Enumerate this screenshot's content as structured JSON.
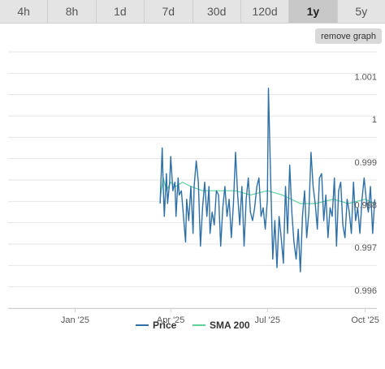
{
  "tabs": [
    {
      "label": "4h",
      "active": false
    },
    {
      "label": "8h",
      "active": false
    },
    {
      "label": "1d",
      "active": false
    },
    {
      "label": "7d",
      "active": false
    },
    {
      "label": "30d",
      "active": false
    },
    {
      "label": "120d",
      "active": false
    },
    {
      "label": "1y",
      "active": true
    },
    {
      "label": "5y",
      "active": false
    }
  ],
  "remove_graph_label": "remove graph",
  "colors": {
    "price": "#2d6fa6",
    "sma": "#5ed19a",
    "grid": "#e6e6e6",
    "axis_text": "#555555"
  },
  "chart_data": {
    "type": "line",
    "title": "",
    "xlabel": "",
    "ylabel": "",
    "x_range": [
      "2024-10-30",
      "2025-10-12"
    ],
    "ylim": [
      0.99575,
      1.00175
    ],
    "y_ticks": [
      0.996,
      0.997,
      0.998,
      0.999,
      1,
      1.001
    ],
    "y_tick_labels": [
      "0.996",
      "0.997",
      "0.998",
      "0.999",
      "1",
      "1.001"
    ],
    "x_ticks": [
      "2025-01-01",
      "2025-04-01",
      "2025-07-01",
      "2025-10-01"
    ],
    "x_tick_labels": [
      "Jan '25",
      "Apr '25",
      "Jul '25",
      "Oct '25"
    ],
    "grid": true,
    "legend": "bottom-center",
    "series": [
      {
        "name": "Price",
        "x": [
          "2025-03-22",
          "2025-03-24",
          "2025-03-25",
          "2025-03-26",
          "2025-03-28",
          "2025-03-29",
          "2025-03-31",
          "2025-04-01",
          "2025-04-03",
          "2025-04-05",
          "2025-04-06",
          "2025-04-08",
          "2025-04-09",
          "2025-04-11",
          "2025-04-13",
          "2025-04-15",
          "2025-04-16",
          "2025-04-18",
          "2025-04-20",
          "2025-04-22",
          "2025-04-23",
          "2025-04-25",
          "2025-04-27",
          "2025-04-29",
          "2025-05-01",
          "2025-05-03",
          "2025-05-05",
          "2025-05-07",
          "2025-05-08",
          "2025-05-10",
          "2025-05-12",
          "2025-05-14",
          "2025-05-16",
          "2025-05-18",
          "2025-05-20",
          "2025-05-22",
          "2025-05-24",
          "2025-05-26",
          "2025-05-28",
          "2025-05-30",
          "2025-06-01",
          "2025-06-03",
          "2025-06-05",
          "2025-06-07",
          "2025-06-09",
          "2025-06-11",
          "2025-06-13",
          "2025-06-15",
          "2025-06-17",
          "2025-06-19",
          "2025-06-21",
          "2025-06-23",
          "2025-06-25",
          "2025-06-27",
          "2025-06-29",
          "2025-07-01",
          "2025-07-02",
          "2025-07-04",
          "2025-07-06",
          "2025-07-08",
          "2025-07-10",
          "2025-07-12",
          "2025-07-14",
          "2025-07-16",
          "2025-07-18",
          "2025-07-20",
          "2025-07-22",
          "2025-07-24",
          "2025-07-26",
          "2025-07-28",
          "2025-07-30",
          "2025-08-01",
          "2025-08-03",
          "2025-08-05",
          "2025-08-07",
          "2025-08-09",
          "2025-08-11",
          "2025-08-13",
          "2025-08-15",
          "2025-08-17",
          "2025-08-19",
          "2025-08-21",
          "2025-08-23",
          "2025-08-25",
          "2025-08-27",
          "2025-08-29",
          "2025-08-31",
          "2025-09-02",
          "2025-09-04",
          "2025-09-06",
          "2025-09-08",
          "2025-09-10",
          "2025-09-12",
          "2025-09-14",
          "2025-09-16",
          "2025-09-18",
          "2025-09-20",
          "2025-09-22",
          "2025-09-24",
          "2025-09-26",
          "2025-09-28",
          "2025-09-30",
          "2025-10-02",
          "2025-10-04",
          "2025-10-06",
          "2025-10-08",
          "2025-10-10"
        ],
        "values": [
          0.9982,
          0.9995,
          0.9986,
          0.9979,
          0.9989,
          0.9982,
          0.9987,
          0.9993,
          0.9985,
          0.9987,
          0.9979,
          0.9988,
          0.9984,
          0.9985,
          0.9979,
          0.9973,
          0.9983,
          0.9978,
          0.9986,
          0.9975,
          0.9986,
          0.9992,
          0.9987,
          0.9972,
          0.9981,
          0.9987,
          0.9979,
          0.9986,
          0.9975,
          0.998,
          0.9977,
          0.9985,
          0.9984,
          0.9972,
          0.9981,
          0.9986,
          0.9979,
          0.9983,
          0.9974,
          0.9982,
          0.9994,
          0.9984,
          0.9977,
          0.9986,
          0.9972,
          0.9983,
          0.9988,
          0.998,
          0.9978,
          0.9981,
          0.9986,
          0.9988,
          0.9979,
          0.9981,
          0.9976,
          0.9983,
          1.0009,
          0.9988,
          0.9969,
          0.9978,
          0.9967,
          0.9979,
          0.9974,
          0.9968,
          0.9986,
          0.9975,
          0.9991,
          0.998,
          0.9973,
          0.9969,
          0.9976,
          0.9966,
          0.9979,
          0.9985,
          0.9974,
          0.998,
          0.9994,
          0.9986,
          0.9982,
          0.9976,
          0.9988,
          0.9989,
          0.9978,
          0.9984,
          0.9974,
          0.9981,
          0.9979,
          0.9988,
          0.9972,
          0.9985,
          0.9987,
          0.9977,
          0.9974,
          0.9983,
          0.998,
          0.9975,
          0.9987,
          0.9978,
          0.9981,
          0.9975,
          0.9983,
          0.9988,
          0.9983,
          0.998,
          0.9986,
          0.9975,
          0.9983
        ]
      },
      {
        "name": "SMA 200",
        "x": [
          "2025-03-22",
          "2025-03-25",
          "2025-03-28",
          "2025-04-01",
          "2025-04-06",
          "2025-04-12",
          "2025-04-20",
          "2025-05-01",
          "2025-05-15",
          "2025-06-01",
          "2025-06-15",
          "2025-07-01",
          "2025-07-15",
          "2025-08-01",
          "2025-08-15",
          "2025-09-01",
          "2025-09-15",
          "2025-10-01",
          "2025-10-10"
        ],
        "values": [
          0.9983,
          0.9988,
          0.9985,
          0.9987,
          0.9986,
          0.9987,
          0.9986,
          0.9985,
          0.9985,
          0.9985,
          0.9984,
          0.9985,
          0.9984,
          0.9982,
          0.9982,
          0.9983,
          0.9982,
          0.9983,
          0.9982
        ]
      }
    ]
  }
}
